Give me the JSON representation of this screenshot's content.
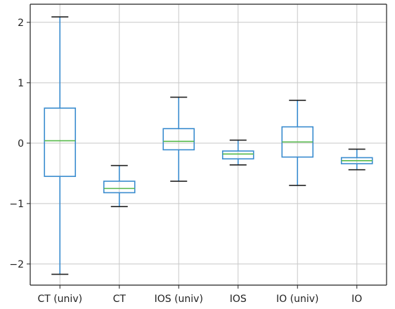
{
  "chart_data": {
    "type": "box",
    "title": "",
    "xlabel": "",
    "ylabel": "",
    "ylim": [
      -2.35,
      2.3
    ],
    "yticks": [
      -2,
      -1,
      0,
      1,
      2
    ],
    "ytick_labels": [
      "−2",
      "−1",
      "0",
      "1",
      "2"
    ],
    "grid": true,
    "categories": [
      "CT (univ)",
      "CT",
      "IOS (univ)",
      "IOS",
      "IO (univ)",
      "IO"
    ],
    "boxes": [
      {
        "category": "CT (univ)",
        "whisker_low": -2.17,
        "q1": -0.55,
        "median": 0.04,
        "q3": 0.58,
        "whisker_high": 2.09
      },
      {
        "category": "CT",
        "whisker_low": -1.05,
        "q1": -0.82,
        "median": -0.75,
        "q3": -0.63,
        "whisker_high": -0.37
      },
      {
        "category": "IOS (univ)",
        "whisker_low": -0.63,
        "q1": -0.11,
        "median": 0.03,
        "q3": 0.24,
        "whisker_high": 0.76
      },
      {
        "category": "IOS",
        "whisker_low": -0.36,
        "q1": -0.26,
        "median": -0.18,
        "q3": -0.13,
        "whisker_high": 0.05
      },
      {
        "category": "IO (univ)",
        "whisker_low": -0.7,
        "q1": -0.23,
        "median": 0.02,
        "q3": 0.27,
        "whisker_high": 0.71
      },
      {
        "category": "IO",
        "whisker_low": -0.44,
        "q1": -0.34,
        "median": -0.29,
        "q3": -0.24,
        "whisker_high": -0.1
      }
    ],
    "colors": {
      "box": "#3a8ccf",
      "median": "#55b94a",
      "grid": "#c8c8c8",
      "axis": "#222222",
      "text": "#222222"
    }
  }
}
